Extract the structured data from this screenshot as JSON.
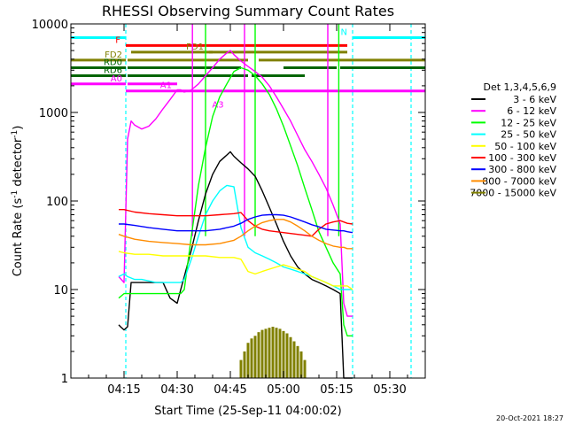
{
  "chart_data": {
    "type": "line",
    "title": "RHESSI Observing Summary Count Rates",
    "xlabel": "Start Time (25-Sep-11 04:00:02)",
    "ylabel": "Count Rate (s",
    "ylabel_sup": "-1",
    "ylabel_tail": " detector",
    "ylabel_end": ")",
    "timestamp": "20-Oct-2021 18:27",
    "x_unit": "minutes after 04:00:02",
    "xlim": [
      0,
      100
    ],
    "ylim": [
      1,
      10000
    ],
    "y_scale": "log",
    "grid": false,
    "legend_title": "Det 1,3,4,5,6,9",
    "legend_position": "right",
    "x_ticks": [
      {
        "value": 15,
        "label": "04:15"
      },
      {
        "value": 30,
        "label": "04:30"
      },
      {
        "value": 45,
        "label": "04:45"
      },
      {
        "value": 60,
        "label": "05:00"
      },
      {
        "value": 75,
        "label": "05:15"
      },
      {
        "value": 90,
        "label": "05:30"
      }
    ],
    "y_ticks": [
      {
        "value": 1,
        "label": "1"
      },
      {
        "value": 10,
        "label": "10"
      },
      {
        "value": 100,
        "label": "100"
      },
      {
        "value": 1000,
        "label": "1000"
      },
      {
        "value": 10000,
        "label": "10000"
      }
    ],
    "series": [
      {
        "name": "3 - 6 keV",
        "color": "#000000",
        "x": [
          13.5,
          14,
          15,
          16,
          17,
          18,
          20,
          22,
          24,
          26,
          28,
          30,
          31,
          32,
          34,
          36,
          38,
          40,
          42,
          44,
          45,
          46,
          48,
          50,
          52,
          54,
          56,
          58,
          60,
          62,
          64,
          66,
          68,
          70,
          72,
          74,
          76,
          77,
          78,
          79.5
        ],
        "values": [
          4,
          3.8,
          3.5,
          3.8,
          12,
          12,
          12,
          12,
          12,
          12,
          8,
          7,
          10,
          14,
          28,
          60,
          120,
          200,
          280,
          330,
          360,
          320,
          270,
          230,
          190,
          130,
          85,
          55,
          35,
          24,
          18,
          15,
          13,
          12,
          11,
          10,
          9,
          0.9,
          0.9,
          0.9
        ]
      },
      {
        "name": "6 - 12 keV",
        "color": "#ff00ff",
        "x": [
          13.5,
          15,
          16,
          17,
          18,
          20,
          22,
          24,
          26,
          28,
          30,
          31,
          32,
          34,
          36,
          38,
          40,
          42,
          44,
          45,
          46,
          48,
          50,
          52,
          54,
          56,
          58,
          60,
          62,
          64,
          66,
          68,
          70,
          72,
          74,
          76,
          77,
          78,
          79.5
        ],
        "values": [
          14,
          12,
          500,
          800,
          720,
          650,
          700,
          850,
          1100,
          1400,
          1800,
          1800,
          1700,
          1800,
          2100,
          2600,
          3200,
          4000,
          4700,
          5000,
          4500,
          3800,
          3300,
          2900,
          2500,
          2000,
          1500,
          1100,
          800,
          550,
          380,
          280,
          200,
          140,
          90,
          55,
          7,
          5,
          5
        ]
      },
      {
        "name": "12 - 25 keV",
        "color": "#00ff00",
        "x": [
          13.5,
          15,
          16,
          17,
          18,
          20,
          22,
          24,
          26,
          28,
          30,
          31,
          32,
          34,
          36,
          38,
          40,
          42,
          44,
          46,
          48,
          50,
          52,
          54,
          56,
          58,
          60,
          62,
          64,
          66,
          68,
          70,
          72,
          74,
          76,
          77,
          78,
          79.5
        ],
        "values": [
          8,
          9,
          9,
          9,
          9,
          9,
          9,
          9,
          9,
          9,
          9,
          9,
          10,
          40,
          150,
          400,
          900,
          1500,
          2100,
          2900,
          3200,
          3000,
          2600,
          2100,
          1600,
          1100,
          700,
          420,
          250,
          140,
          80,
          45,
          30,
          20,
          15,
          4,
          3,
          3
        ]
      },
      {
        "name": "25 - 50 keV",
        "color": "#00ffff",
        "x": [
          13.5,
          15,
          16,
          18,
          20,
          22,
          24,
          26,
          28,
          30,
          31,
          32,
          34,
          36,
          38,
          40,
          42,
          44,
          46,
          48,
          50,
          52,
          54,
          56,
          58,
          60,
          62,
          64,
          66,
          68,
          70,
          72,
          74,
          76,
          77,
          78,
          79.5
        ],
        "values": [
          14,
          15,
          14,
          13,
          13,
          12.5,
          12,
          12,
          12,
          12,
          12,
          13,
          22,
          40,
          70,
          100,
          130,
          150,
          145,
          50,
          30,
          26,
          24,
          22,
          20,
          18,
          17,
          16,
          15,
          14,
          13,
          12,
          11,
          10,
          10,
          10,
          10
        ]
      },
      {
        "name": "50 - 100 keV",
        "color": "#ffff00",
        "x": [
          13.5,
          15,
          18,
          22,
          26,
          30,
          34,
          38,
          42,
          46,
          48,
          50,
          52,
          54,
          56,
          58,
          60,
          62,
          64,
          66,
          68,
          70,
          72,
          74,
          76,
          77,
          78,
          79.5
        ],
        "values": [
          27,
          26,
          25,
          25,
          24,
          24,
          24,
          24,
          23,
          23,
          22,
          16,
          15,
          16,
          17,
          18,
          19,
          18,
          17,
          16,
          14,
          13,
          12,
          11,
          11,
          11,
          11,
          10
        ]
      },
      {
        "name": "100 - 300 keV",
        "color": "#ff0000",
        "x": [
          13.5,
          15,
          18,
          22,
          26,
          30,
          34,
          38,
          42,
          46,
          48,
          50,
          52,
          54,
          56,
          58,
          60,
          62,
          64,
          66,
          68,
          70,
          72,
          74,
          76,
          77,
          78,
          79.5
        ],
        "values": [
          80,
          80,
          75,
          72,
          70,
          68,
          68,
          68,
          70,
          72,
          74,
          60,
          52,
          48,
          46,
          45,
          44,
          43,
          42,
          41,
          40,
          48,
          55,
          58,
          60,
          58,
          56,
          55
        ]
      },
      {
        "name": "300 - 800 keV",
        "color": "#0000ff",
        "x": [
          13.5,
          15,
          18,
          22,
          26,
          30,
          34,
          38,
          42,
          46,
          48,
          50,
          52,
          54,
          56,
          58,
          60,
          62,
          64,
          66,
          68,
          70,
          72,
          74,
          76,
          77,
          78,
          79.5
        ],
        "values": [
          55,
          55,
          53,
          50,
          48,
          46,
          46,
          46,
          48,
          52,
          56,
          62,
          66,
          69,
          70,
          70,
          69,
          66,
          62,
          58,
          54,
          51,
          48,
          47,
          46,
          46,
          45,
          44
        ]
      },
      {
        "name": "800 - 7000 keV",
        "color": "#ff8c00",
        "x": [
          13.5,
          15,
          18,
          22,
          26,
          30,
          34,
          38,
          42,
          46,
          48,
          50,
          52,
          54,
          56,
          58,
          60,
          62,
          64,
          66,
          68,
          70,
          72,
          74,
          76,
          77,
          78,
          79.5
        ],
        "values": [
          42,
          40,
          37,
          35,
          34,
          33,
          32,
          32,
          33,
          36,
          40,
          46,
          52,
          57,
          60,
          62,
          62,
          58,
          52,
          46,
          40,
          36,
          33,
          31,
          30,
          30,
          29,
          29
        ]
      },
      {
        "name": "7000 - 15000 keV",
        "color": "#808000",
        "x": [
          48,
          49,
          50,
          51,
          52,
          53,
          54,
          55,
          56,
          57,
          58,
          59,
          60,
          61,
          62,
          63,
          64,
          65,
          66
        ],
        "values": [
          1.6,
          2,
          2.5,
          2.8,
          3,
          3.3,
          3.5,
          3.6,
          3.7,
          3.8,
          3.7,
          3.6,
          3.4,
          3.2,
          2.9,
          2.6,
          2.3,
          2,
          1.6
        ]
      }
    ],
    "flag_bars": [
      {
        "label": "N",
        "color": "#00ffff",
        "value": 7000,
        "segments": [
          [
            0,
            15.5
          ],
          [
            79.5,
            100
          ]
        ]
      },
      {
        "label": "F",
        "color": "#ff0000",
        "value": 5700,
        "segments": [
          [
            15.5,
            78
          ]
        ]
      },
      {
        "label": "FD1",
        "color": "#808000",
        "value": 4800,
        "segments": [
          [
            17,
            40
          ],
          [
            39,
            78
          ]
        ]
      },
      {
        "label": "FD2",
        "color": "#808000",
        "value": 3900,
        "segments": [
          [
            0,
            15.5
          ],
          [
            16,
            50
          ],
          [
            53,
            64
          ],
          [
            64,
            100
          ]
        ]
      },
      {
        "label": "RD0",
        "color": "#006400",
        "value": 3200,
        "segments": [
          [
            0,
            15.5
          ],
          [
            16,
            48
          ],
          [
            60,
            75
          ],
          [
            76,
            100
          ]
        ]
      },
      {
        "label": "RD6",
        "color": "#006400",
        "value": 2600,
        "segments": [
          [
            0,
            15.5
          ],
          [
            16,
            50
          ],
          [
            51,
            66
          ]
        ]
      },
      {
        "label": "A0",
        "color": "#ff00ff",
        "value": 2100,
        "segments": [
          [
            0,
            15.5
          ],
          [
            16,
            30
          ]
        ]
      },
      {
        "label": "A1",
        "color": "#ff00ff",
        "value": 1750,
        "segments": [
          [
            15.5,
            30
          ],
          [
            30,
            100
          ]
        ]
      },
      {
        "label": "A3",
        "color": "#ff00ff",
        "value": 1500,
        "segments": []
      }
    ],
    "saa_markers": [
      15.5,
      79.5,
      96
    ],
    "attenuator_spikes": [
      {
        "x": 34.3,
        "color": "#ff00ff"
      },
      {
        "x": 38,
        "color": "#00ff00"
      },
      {
        "x": 49,
        "color": "#ff00ff"
      },
      {
        "x": 52,
        "color": "#00ff00"
      },
      {
        "x": 72.5,
        "color": "#ff00ff"
      },
      {
        "x": 75.6,
        "color": "#00ff00"
      }
    ]
  }
}
